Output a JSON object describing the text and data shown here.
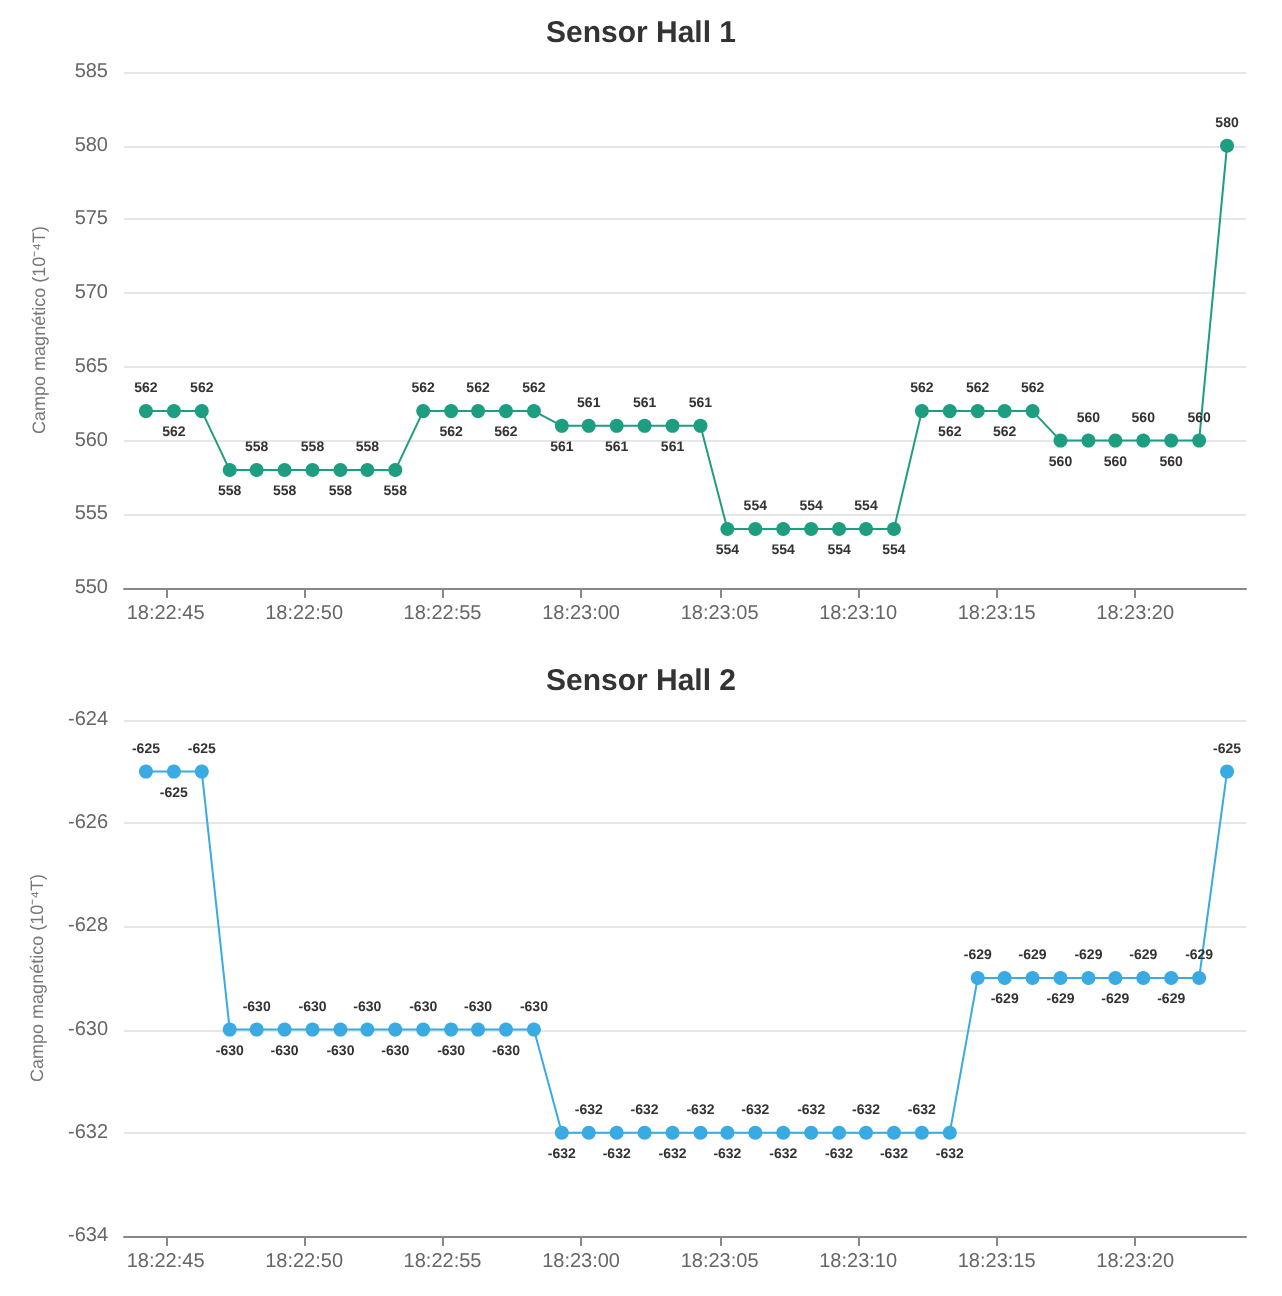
{
  "chart_data": [
    {
      "type": "line",
      "title": "Sensor Hall 1",
      "ylabel": "Campo magnético (10⁻⁴T)",
      "x": [
        18.37897,
        18.37925,
        18.37953,
        18.37981,
        18.38008,
        18.38036,
        18.38064,
        18.38092,
        18.38119,
        18.38147,
        18.38175,
        18.38203,
        18.3823,
        18.38258,
        18.38286,
        18.38314,
        18.38341,
        18.38369,
        18.38397,
        18.38425,
        18.38453,
        18.3848,
        18.38508,
        18.38536,
        18.38564,
        18.38592,
        18.38619,
        18.38647,
        18.38675,
        18.38703,
        18.38731,
        18.38758,
        18.38786,
        18.38814,
        18.38842,
        18.38869,
        18.38897,
        18.38925,
        18.38953,
        18.38981
      ],
      "series": [
        {
          "color": "#1e9e80",
          "values": [
            562,
            562,
            562,
            558,
            558,
            558,
            558,
            558,
            558,
            558,
            562,
            562,
            562,
            562,
            562,
            561,
            561,
            561,
            561,
            561,
            561,
            554,
            554,
            554,
            554,
            554,
            554,
            554,
            562,
            562,
            562,
            562,
            562,
            560,
            560,
            560,
            560,
            560,
            560,
            580
          ]
        }
      ],
      "xlim": [
        18.37875,
        18.39
      ],
      "xticks": [
        {
          "value": 18.379167,
          "label": "18:22:45"
        },
        {
          "value": 18.380556,
          "label": "18:22:50"
        },
        {
          "value": 18.381944,
          "label": "18:22:55"
        },
        {
          "value": 18.383333,
          "label": "18:23:00"
        },
        {
          "value": 18.384722,
          "label": "18:23:05"
        },
        {
          "value": 18.386111,
          "label": "18:23:10"
        },
        {
          "value": 18.3875,
          "label": "18:23:15"
        },
        {
          "value": 18.388889,
          "label": "18:23:20"
        }
      ],
      "ylim": [
        550,
        585
      ],
      "yticks": [
        550,
        555,
        560,
        565,
        570,
        575,
        580,
        585
      ],
      "grid": "y",
      "marker": "circle",
      "line_style": "solid",
      "data_labels": true
    },
    {
      "type": "line",
      "title": "Sensor Hall 2",
      "ylabel": "Campo magnético (10⁻⁴T)",
      "x": [
        18.37897,
        18.37925,
        18.37953,
        18.37981,
        18.38008,
        18.38036,
        18.38064,
        18.38092,
        18.38119,
        18.38147,
        18.38175,
        18.38203,
        18.3823,
        18.38258,
        18.38286,
        18.38314,
        18.38341,
        18.38369,
        18.38397,
        18.38425,
        18.38453,
        18.3848,
        18.38508,
        18.38536,
        18.38564,
        18.38592,
        18.38619,
        18.38647,
        18.38675,
        18.38703,
        18.38731,
        18.38758,
        18.38786,
        18.38814,
        18.38842,
        18.38869,
        18.38897,
        18.38925,
        18.38953,
        18.38981
      ],
      "series": [
        {
          "color": "#3aaae2",
          "values": [
            -625,
            -625,
            -625,
            -630,
            -630,
            -630,
            -630,
            -630,
            -630,
            -630,
            -630,
            -630,
            -630,
            -630,
            -630,
            -632,
            -632,
            -632,
            -632,
            -632,
            -632,
            -632,
            -632,
            -632,
            -632,
            -632,
            -632,
            -632,
            -632,
            -632,
            -629,
            -629,
            -629,
            -629,
            -629,
            -629,
            -629,
            -629,
            -629,
            -625
          ]
        }
      ],
      "xlim": [
        18.37875,
        18.39
      ],
      "xticks": [
        {
          "value": 18.379167,
          "label": "18:22:45"
        },
        {
          "value": 18.380556,
          "label": "18:22:50"
        },
        {
          "value": 18.381944,
          "label": "18:22:55"
        },
        {
          "value": 18.383333,
          "label": "18:23:00"
        },
        {
          "value": 18.384722,
          "label": "18:23:05"
        },
        {
          "value": 18.386111,
          "label": "18:23:10"
        },
        {
          "value": 18.3875,
          "label": "18:23:15"
        },
        {
          "value": 18.388889,
          "label": "18:23:20"
        }
      ],
      "ylim": [
        -634,
        -624
      ],
      "yticks": [
        -634,
        -632,
        -630,
        -628,
        -626,
        -624
      ],
      "grid": "y",
      "marker": "circle",
      "line_style": "solid",
      "data_labels": true
    }
  ]
}
